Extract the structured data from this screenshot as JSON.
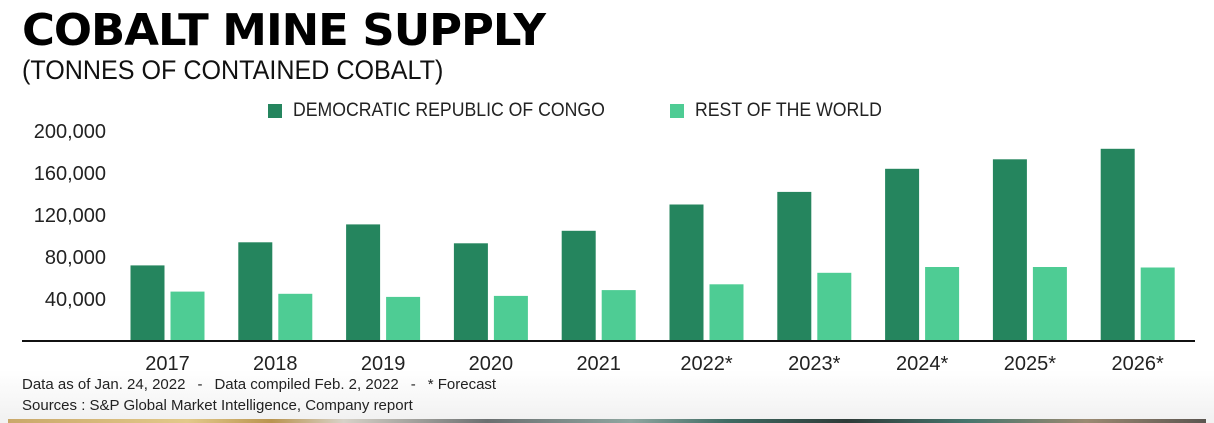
{
  "header": {
    "title": "COBALT MINE SUPPLY",
    "subtitle": "(TONNES OF CONTAINED COBALT)"
  },
  "legend": [
    {
      "label": "DEMOCRATIC REPUBLIC OF CONGO",
      "color": "#25855e"
    },
    {
      "label": "REST OF THE WORLD",
      "color": "#4ecc94"
    }
  ],
  "footnotes": {
    "data_as_of": "Data as of Jan. 24, 2022",
    "separator": "-",
    "compiled": "Data compiled Feb. 2, 2022",
    "forecast": "* Forecast",
    "sources": "Sources : S&P Global Market Intelligence, Company report"
  },
  "chart_data": {
    "type": "bar",
    "title": "COBALT MINE SUPPLY",
    "subtitle": "(TONNES OF CONTAINED COBALT)",
    "xlabel": "",
    "ylabel": "",
    "categories": [
      "2017",
      "2018",
      "2019",
      "2020",
      "2021",
      "2022*",
      "2023*",
      "2024*",
      "2025*",
      "2026*"
    ],
    "series": [
      {
        "name": "DEMOCRATIC REPUBLIC OF CONGO",
        "color": "#25855e",
        "values": [
          72000,
          94000,
          111000,
          93000,
          105000,
          130000,
          142000,
          164000,
          173000,
          183000
        ]
      },
      {
        "name": "REST OF THE WORLD",
        "color": "#4ecc94",
        "values": [
          47000,
          45000,
          42000,
          43000,
          48500,
          54000,
          65000,
          70500,
          70500,
          70000
        ]
      }
    ],
    "ylim": [
      0,
      200000
    ],
    "yticks": [
      40000,
      80000,
      120000,
      160000,
      200000
    ],
    "ytick_labels": [
      "40,000",
      "80,000",
      "120,000",
      "160,000",
      "200,000"
    ],
    "grid": false,
    "legend_position": "top-center"
  }
}
